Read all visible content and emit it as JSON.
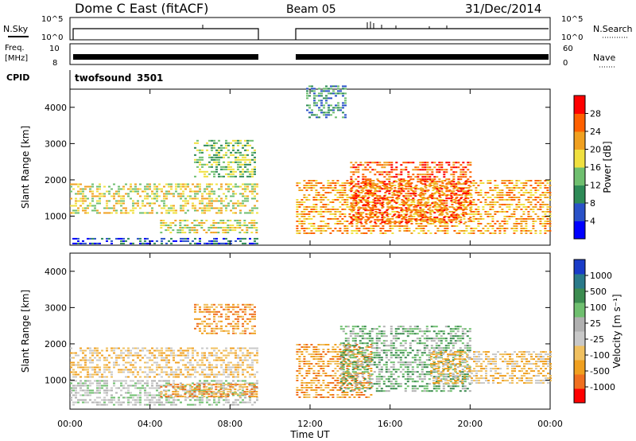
{
  "header": {
    "station": "Dome C East (fitACF)",
    "beam": "Beam 05",
    "date": "31/Dec/2014"
  },
  "panels": {
    "nsky": {
      "label": "N.Sky",
      "ticks": [
        "10^5",
        "10^0"
      ],
      "right_label": "N.Search",
      "right_ticks": [
        "10^5",
        "10^0"
      ]
    },
    "freq": {
      "label_1": "Freq.",
      "label_2": "[MHz]",
      "ticks": [
        "10",
        "8"
      ],
      "right_label": "Nave",
      "right_ticks": [
        "60",
        "0"
      ]
    },
    "cpid": {
      "label": "CPID",
      "program": "twofsound",
      "id": "3501"
    }
  },
  "colors": {
    "power": [
      "#0000ff",
      "#2a52c8",
      "#2e8b57",
      "#6fbf6f",
      "#f0e040",
      "#f0a020",
      "#ff6000",
      "#ff0000"
    ],
    "velocity": [
      "#ff0000",
      "#f07020",
      "#f0a020",
      "#f0c060",
      "#c8c8c8",
      "#b0b0b0",
      "#6fbf6f",
      "#3c8c50",
      "#2a7a8a",
      "#1a3cc8"
    ]
  },
  "chart_data": [
    {
      "type": "heatmap",
      "name": "power",
      "ylabel": "Slant Range [km]",
      "ylim": [
        200,
        4500
      ],
      "yticks": [
        "1000",
        "2000",
        "3000",
        "4000"
      ],
      "colorbar": {
        "label": "Power [dB]",
        "ticks": [
          "4",
          "8",
          "12",
          "16",
          "20",
          "24",
          "28"
        ],
        "range": [
          0,
          32
        ]
      },
      "echo_regions": [
        {
          "t0": 0.0,
          "t1": 9.3,
          "r0": 1100,
          "r1": 1900,
          "level": 18
        },
        {
          "t0": 0.0,
          "t1": 9.3,
          "r0": 250,
          "r1": 400,
          "level": 6
        },
        {
          "t0": 4.5,
          "t1": 9.3,
          "r0": 550,
          "r1": 900,
          "level": 18
        },
        {
          "t0": 6.2,
          "t1": 9.2,
          "r0": 2100,
          "r1": 3100,
          "level": 12
        },
        {
          "t0": 11.3,
          "t1": 24.0,
          "r0": 500,
          "r1": 2000,
          "level": 20
        },
        {
          "t0": 14.0,
          "t1": 20.0,
          "r0": 800,
          "r1": 2500,
          "level": 26
        },
        {
          "t0": 11.8,
          "t1": 13.8,
          "r0": 3700,
          "r1": 4600,
          "level": 8
        }
      ]
    },
    {
      "type": "heatmap",
      "name": "velocity",
      "ylabel": "Slant Range [km]",
      "xlabel": "Time UT",
      "xlim": [
        0,
        24
      ],
      "xticks": [
        "00:00",
        "04:00",
        "08:00",
        "12:00",
        "16:00",
        "20:00",
        "00:00"
      ],
      "ylim": [
        200,
        4500
      ],
      "yticks": [
        "1000",
        "2000",
        "3000",
        "4000"
      ],
      "colorbar": {
        "label": "Velocity [m s⁻¹]",
        "ticks": [
          "1000",
          "500",
          "100",
          "25",
          "-25",
          "-100",
          "-500",
          "-1000"
        ]
      },
      "echo_regions": [
        {
          "t0": 0.0,
          "t1": 9.3,
          "r0": 1100,
          "r1": 1900,
          "level": "-25"
        },
        {
          "t0": 0.0,
          "t1": 9.3,
          "r0": 300,
          "r1": 1000,
          "level": "100"
        },
        {
          "t0": 4.5,
          "t1": 9.3,
          "r0": 550,
          "r1": 900,
          "level": "-100"
        },
        {
          "t0": 6.2,
          "t1": 9.2,
          "r0": 2300,
          "r1": 3100,
          "level": "-100"
        },
        {
          "t0": 11.3,
          "t1": 15.0,
          "r0": 500,
          "r1": 2000,
          "level": "-100"
        },
        {
          "t0": 13.5,
          "t1": 20.0,
          "r0": 700,
          "r1": 2500,
          "level": "500"
        },
        {
          "t0": 18.0,
          "t1": 24.0,
          "r0": 900,
          "r1": 1800,
          "level": "-25"
        }
      ]
    }
  ]
}
